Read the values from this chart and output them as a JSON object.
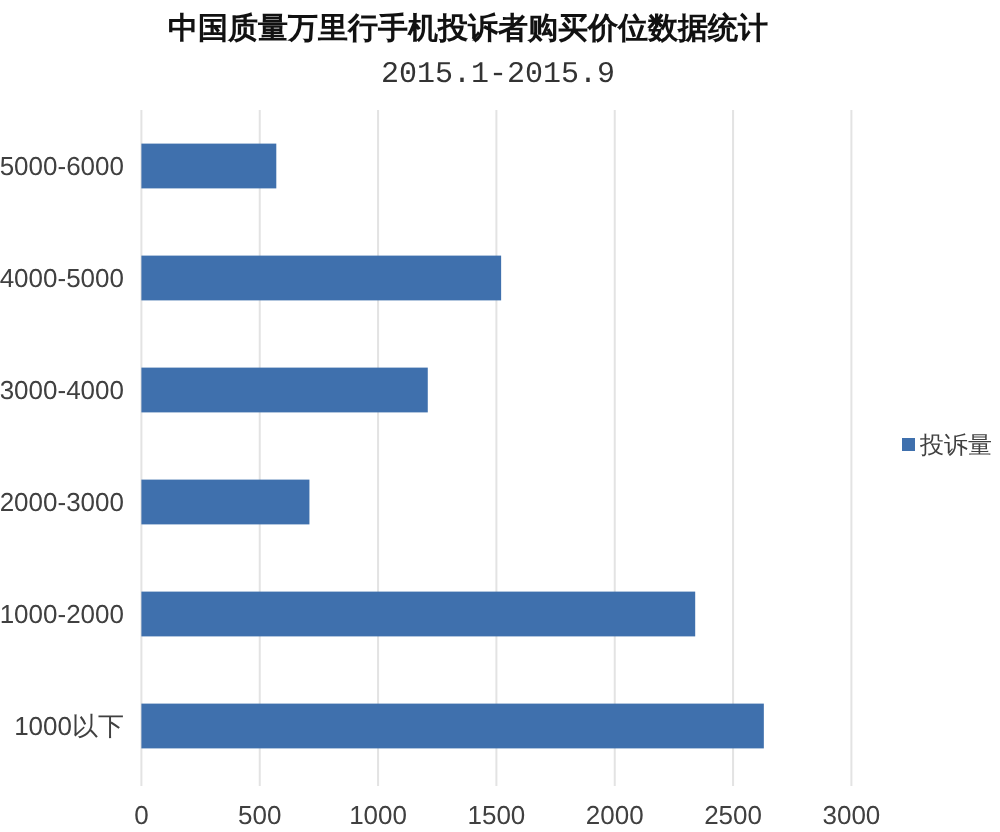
{
  "chart_data": {
    "type": "bar",
    "title": "中国质量万里行手机投诉者购买价位数据统计",
    "subtitle": "2015.1-2015.9",
    "orientation": "horizontal",
    "categories": [
      "5000-6000",
      "4000-5000",
      "3000-4000",
      "2000-3000",
      "1000-2000",
      "1000以下"
    ],
    "series": [
      {
        "name": "投诉量",
        "color": "#3f70ad",
        "values": [
          570,
          1520,
          1210,
          710,
          2340,
          2630
        ]
      }
    ],
    "xlim": [
      0,
      3000
    ],
    "xticks": [
      0,
      500,
      1000,
      1500,
      2000,
      2500,
      3000
    ],
    "grid": "x",
    "legend": "right"
  }
}
